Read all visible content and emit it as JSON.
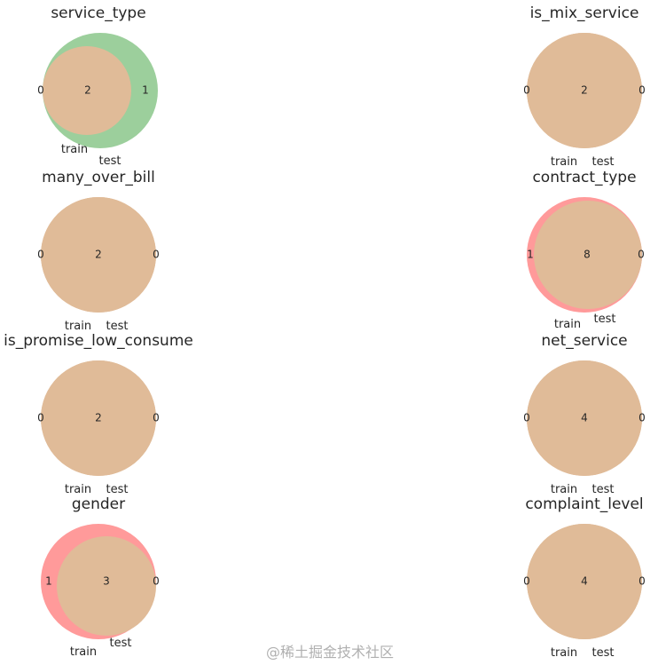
{
  "chart_data": [
    {
      "type": "venn2",
      "title": "service_type",
      "set_labels": [
        "train",
        "test"
      ],
      "subsets": {
        "train_only": 0,
        "both": 2,
        "test_only": 1
      },
      "colors": {
        "test": "#9ccf9c"
      }
    },
    {
      "type": "venn2",
      "title": "is_mix_service",
      "set_labels": [
        "train",
        "test"
      ],
      "subsets": {
        "train_only": 0,
        "both": 2,
        "test_only": 0
      }
    },
    {
      "type": "venn2",
      "title": "many_over_bill",
      "set_labels": [
        "train",
        "test"
      ],
      "subsets": {
        "train_only": 0,
        "both": 2,
        "test_only": 0
      }
    },
    {
      "type": "venn2",
      "title": "contract_type",
      "set_labels": [
        "train",
        "test"
      ],
      "subsets": {
        "train_only": 1,
        "both": 8,
        "test_only": 0
      },
      "colors": {
        "train": "#ff9a9a"
      }
    },
    {
      "type": "venn2",
      "title": "is_promise_low_consume",
      "set_labels": [
        "train",
        "test"
      ],
      "subsets": {
        "train_only": 0,
        "both": 2,
        "test_only": 0
      }
    },
    {
      "type": "venn2",
      "title": "net_service",
      "set_labels": [
        "train",
        "test"
      ],
      "subsets": {
        "train_only": 0,
        "both": 4,
        "test_only": 0
      }
    },
    {
      "type": "venn2",
      "title": "gender",
      "set_labels": [
        "train",
        "test"
      ],
      "subsets": {
        "train_only": 1,
        "both": 3,
        "test_only": 0
      },
      "colors": {
        "train": "#ff9a9a"
      }
    },
    {
      "type": "venn2",
      "title": "complaint_level",
      "set_labels": [
        "train",
        "test"
      ],
      "subsets": {
        "train_only": 0,
        "both": 4,
        "test_only": 0
      }
    }
  ],
  "overlap_color": "#e0bb98",
  "watermark": "@稀土掘金技术社区"
}
